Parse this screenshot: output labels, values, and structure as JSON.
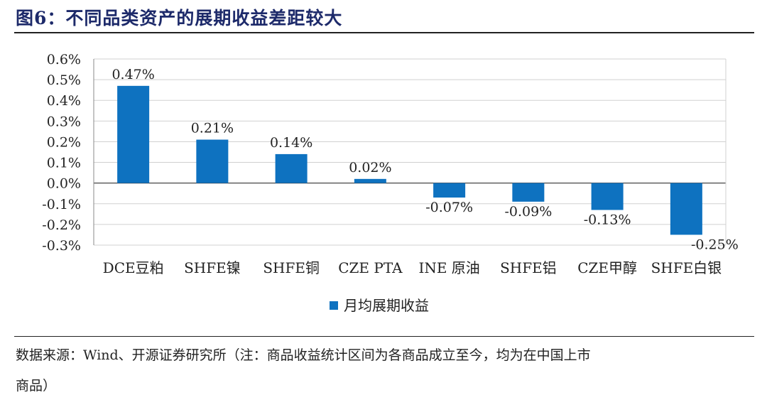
{
  "title": "图6：不同品类资产的展期收益差距较大",
  "chart_data": {
    "type": "bar",
    "categories": [
      "DCE豆粕",
      "SHFE镍",
      "SHFE铜",
      "CZE PTA",
      "INE 原油",
      "SHFE铝",
      "CZE甲醇",
      "SHFE白银"
    ],
    "series": [
      {
        "name": "月均展期收益",
        "values": [
          0.47,
          0.21,
          0.14,
          0.02,
          -0.07,
          -0.09,
          -0.13,
          -0.25
        ]
      }
    ],
    "data_labels": [
      "0.47%",
      "0.21%",
      "0.14%",
      "0.02%",
      "-0.07%",
      "-0.09%",
      "-0.13%",
      "-0.25%"
    ],
    "yticks": [
      "0.6%",
      "0.5%",
      "0.4%",
      "0.3%",
      "0.2%",
      "0.1%",
      "0.0%",
      "-0.1%",
      "-0.2%",
      "-0.3%"
    ],
    "ylim": [
      -0.3,
      0.6
    ],
    "yunit": "%",
    "grid": true,
    "legend_position": "bottom",
    "bar_color": "#0e72c0"
  },
  "footer": {
    "line1": "数据来源：Wind、开源证券研究所（注：商品收益统计区间为各商品成立至今，均为在中国上市",
    "line2": "商品）"
  }
}
